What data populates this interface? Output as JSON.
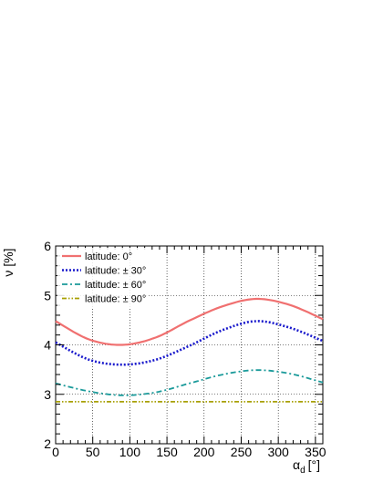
{
  "chart_data": {
    "type": "line",
    "xlabel_main": "α",
    "xlabel_sub": "d",
    "xlabel_unit": "[°]",
    "ylabel": "ν [%]",
    "xlim": [
      0,
      360
    ],
    "ylim": [
      2,
      6
    ],
    "x_ticks": [
      0,
      50,
      100,
      150,
      200,
      250,
      300,
      350
    ],
    "y_ticks": [
      2,
      3,
      4,
      5,
      6
    ],
    "grid": true,
    "legend_position": "top-left",
    "series": [
      {
        "name": "latitude: 0°",
        "style": "solid",
        "color": "#f07070",
        "x": [
          0,
          45,
          90,
          135,
          180,
          225,
          270,
          315,
          360
        ],
        "y": [
          4.48,
          4.11,
          4.0,
          4.15,
          4.49,
          4.78,
          4.93,
          4.81,
          4.52
        ]
      },
      {
        "name": "latitude: ± 30°",
        "style": "dotted",
        "color": "#1a1acc",
        "x": [
          0,
          45,
          90,
          135,
          180,
          225,
          270,
          315,
          360
        ],
        "y": [
          4.05,
          3.7,
          3.6,
          3.7,
          3.98,
          4.3,
          4.48,
          4.35,
          4.08
        ]
      },
      {
        "name": "latitude: ± 60°",
        "style": "dashdot",
        "color": "#1a9a9a",
        "x": [
          0,
          45,
          90,
          135,
          180,
          225,
          270,
          315,
          360
        ],
        "y": [
          3.22,
          3.06,
          2.98,
          3.04,
          3.22,
          3.4,
          3.49,
          3.42,
          3.24
        ]
      },
      {
        "name": "latitude: ± 90°",
        "style": "dashdotdot",
        "color": "#a8a000",
        "x": [
          0,
          360
        ],
        "y": [
          2.85,
          2.85
        ]
      }
    ]
  }
}
